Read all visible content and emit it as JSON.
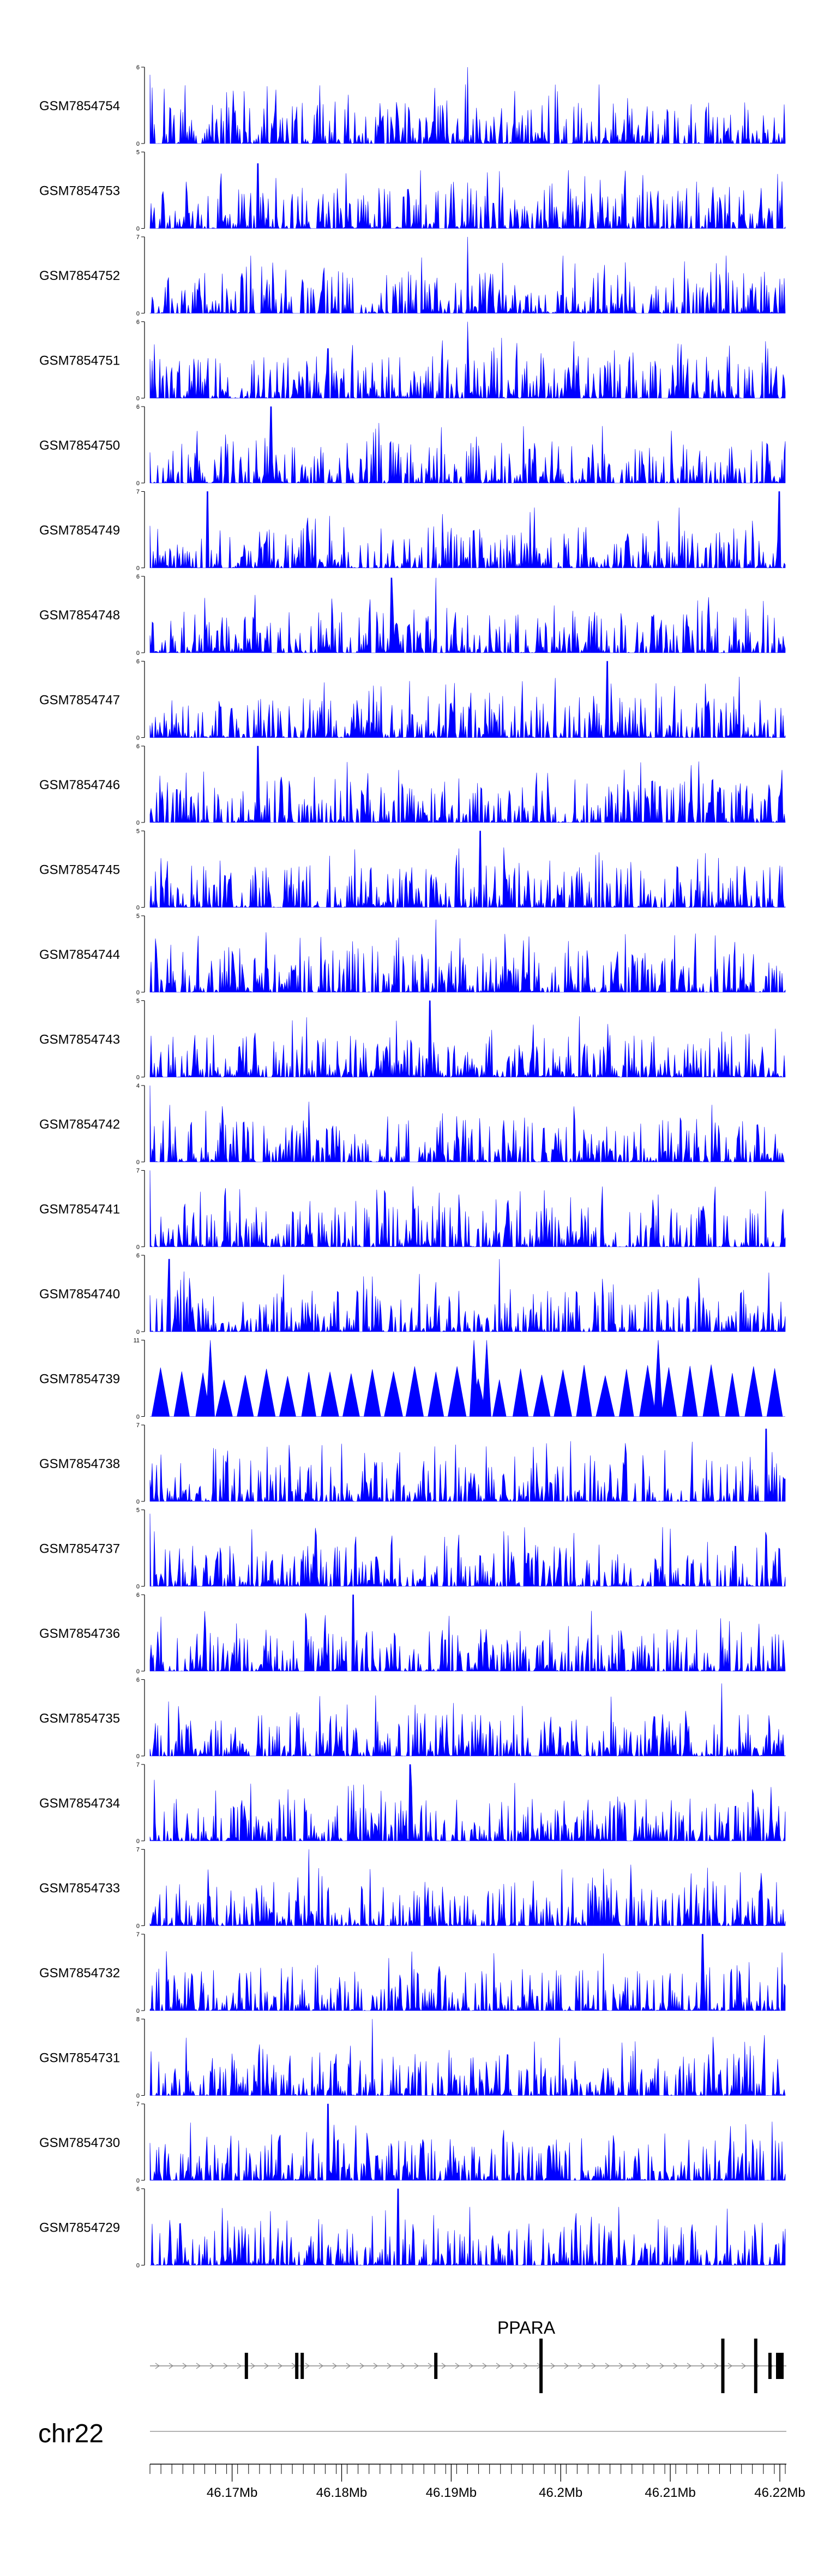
{
  "chart_data": {
    "type": "area",
    "title": "",
    "color": "#0000ff",
    "tracks": [
      {
        "name": "GSM7854754",
        "ymax": 6,
        "seed": 11,
        "peaks": [
          [
            0.0,
            0.9
          ],
          [
            0.5,
            1.0
          ]
        ]
      },
      {
        "name": "GSM7854753",
        "ymax": 5,
        "seed": 12,
        "peaks": [
          [
            0.17,
            0.85
          ],
          [
            0.5,
            0.6
          ]
        ]
      },
      {
        "name": "GSM7854752",
        "ymax": 7,
        "seed": 13,
        "peaks": [
          [
            0.5,
            1.0
          ]
        ]
      },
      {
        "name": "GSM7854751",
        "ymax": 6,
        "seed": 14,
        "peaks": [
          [
            0.5,
            1.0
          ],
          [
            0.28,
            0.65
          ]
        ]
      },
      {
        "name": "GSM7854750",
        "ymax": 6,
        "seed": 15,
        "peaks": [
          [
            0.19,
            1.0
          ]
        ]
      },
      {
        "name": "GSM7854749",
        "ymax": 7,
        "seed": 16,
        "peaks": [
          [
            0.09,
            1.0
          ],
          [
            0.99,
            1.0
          ]
        ]
      },
      {
        "name": "GSM7854748",
        "ymax": 6,
        "seed": 17,
        "peaks": [
          [
            0.45,
            0.98
          ],
          [
            0.38,
            0.98
          ]
        ]
      },
      {
        "name": "GSM7854747",
        "ymax": 6,
        "seed": 18,
        "peaks": [
          [
            0.72,
            1.0
          ]
        ]
      },
      {
        "name": "GSM7854746",
        "ymax": 6,
        "seed": 19,
        "peaks": [
          [
            0.17,
            1.0
          ]
        ]
      },
      {
        "name": "GSM7854745",
        "ymax": 5,
        "seed": 20,
        "peaks": [
          [
            0.52,
            1.0
          ]
        ]
      },
      {
        "name": "GSM7854744",
        "ymax": 5,
        "seed": 21,
        "peaks": [
          [
            0.45,
            0.95
          ]
        ]
      },
      {
        "name": "GSM7854743",
        "ymax": 5,
        "seed": 22,
        "peaks": [
          [
            0.44,
            1.0
          ]
        ]
      },
      {
        "name": "GSM7854742",
        "ymax": 4,
        "seed": 23,
        "peaks": [
          [
            0.0,
            1.0
          ]
        ]
      },
      {
        "name": "GSM7854741",
        "ymax": 7,
        "seed": 24,
        "peaks": [
          [
            0.0,
            1.0
          ]
        ]
      },
      {
        "name": "GSM7854740",
        "ymax": 6,
        "seed": 25,
        "peaks": [
          [
            0.03,
            0.95
          ],
          [
            0.55,
            0.95
          ]
        ]
      },
      {
        "name": "GSM7854739",
        "ymax": 11,
        "seed": 26,
        "peaks": [],
        "sparse": true
      },
      {
        "name": "GSM7854738",
        "ymax": 7,
        "seed": 27,
        "peaks": [
          [
            0.97,
            0.95
          ]
        ]
      },
      {
        "name": "GSM7854737",
        "ymax": 5,
        "seed": 28,
        "peaks": [
          [
            0.0,
            0.95
          ]
        ]
      },
      {
        "name": "GSM7854736",
        "ymax": 6,
        "seed": 29,
        "peaks": [
          [
            0.32,
            1.0
          ]
        ]
      },
      {
        "name": "GSM7854735",
        "ymax": 6,
        "seed": 30,
        "peaks": [
          [
            0.9,
            0.95
          ]
        ]
      },
      {
        "name": "GSM7854734",
        "ymax": 7,
        "seed": 31,
        "peaks": [
          [
            0.41,
            1.0
          ]
        ]
      },
      {
        "name": "GSM7854733",
        "ymax": 7,
        "seed": 32,
        "peaks": [
          [
            0.25,
            1.0
          ]
        ]
      },
      {
        "name": "GSM7854732",
        "ymax": 7,
        "seed": 33,
        "peaks": [
          [
            0.87,
            1.0
          ]
        ]
      },
      {
        "name": "GSM7854731",
        "ymax": 8,
        "seed": 34,
        "peaks": [
          [
            0.35,
            1.0
          ]
        ]
      },
      {
        "name": "GSM7854730",
        "ymax": 7,
        "seed": 35,
        "peaks": [
          [
            0.28,
            1.0
          ]
        ]
      },
      {
        "name": "GSM7854729",
        "ymax": 6,
        "seed": 36,
        "peaks": [
          [
            0.39,
            1.0
          ]
        ]
      }
    ],
    "gene": {
      "name": "PPARA",
      "exons_mb": [
        46.1713,
        46.1759,
        46.1764,
        46.1886,
        46.1982,
        46.2148,
        46.2178,
        46.2191,
        46.22
      ],
      "strand": "+"
    },
    "chromosome": "chr22",
    "xrange_mb": [
      46.1625,
      46.2205
    ],
    "axis_ticks_mb": [
      46.17,
      46.18,
      46.19,
      46.2,
      46.21,
      46.22
    ],
    "axis_tick_labels": [
      "46.17Mb",
      "46.18Mb",
      "46.19Mb",
      "46.2Mb",
      "46.21Mb",
      "46.22Mb"
    ]
  }
}
